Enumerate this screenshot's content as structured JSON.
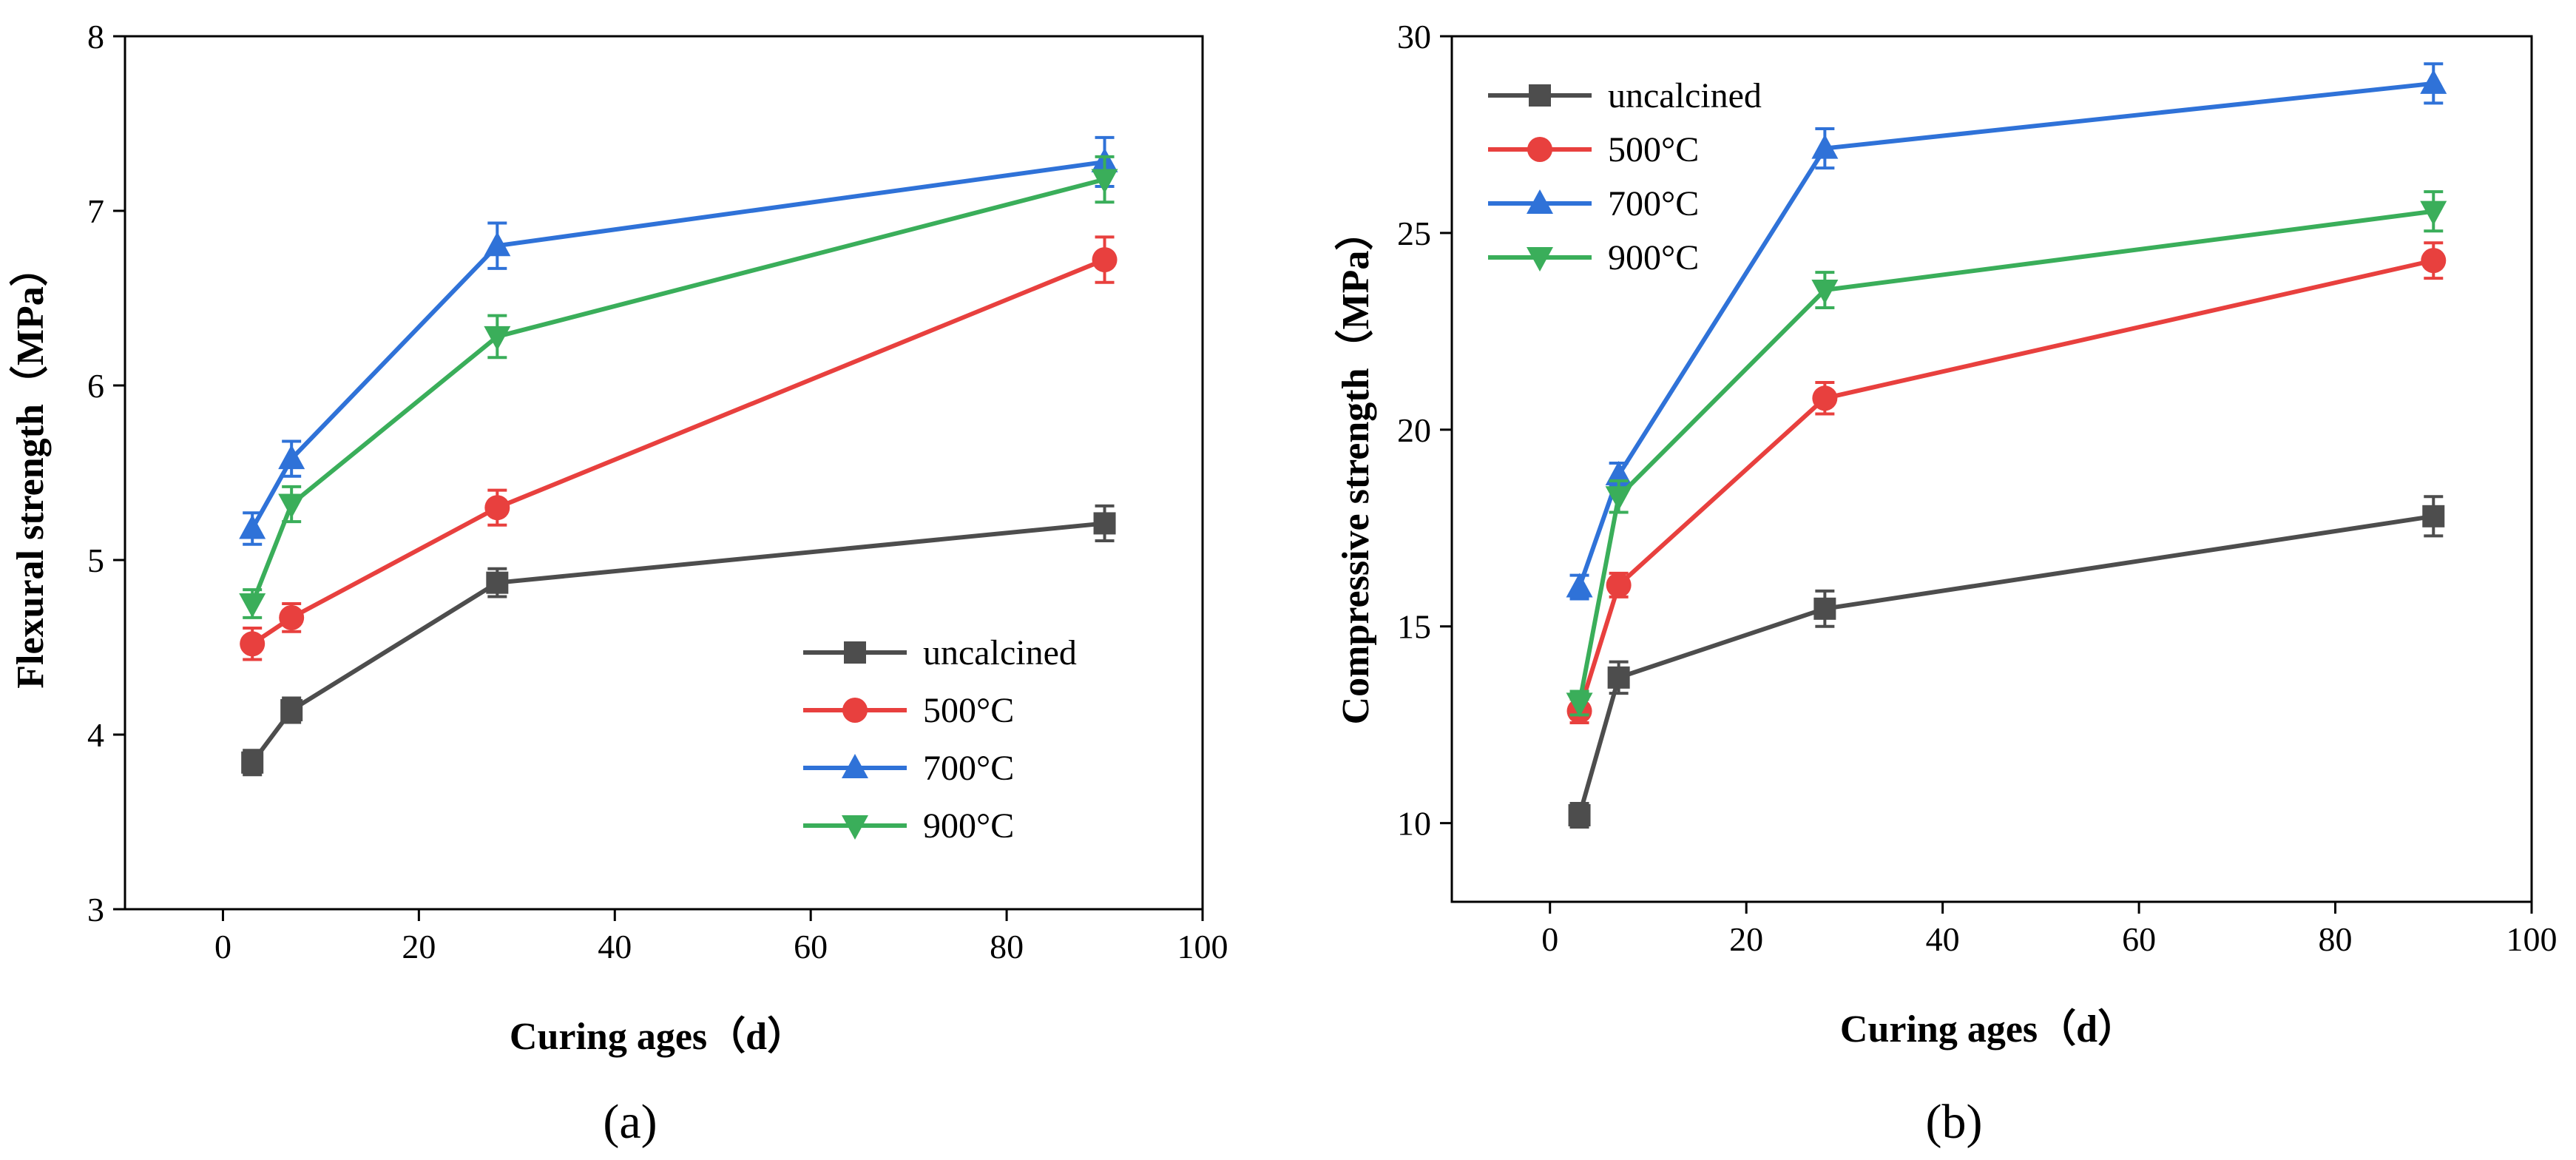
{
  "series_colors": [
    "#4d4d4d",
    "#e8403e",
    "#2f72d8",
    "#3aae5a"
  ],
  "chart_data": [
    {
      "type": "line",
      "id": "a",
      "xlabel": "Curing ages（d）",
      "ylabel": "Flexural strength（MPa）",
      "xlim": [
        -10,
        100
      ],
      "ylim": [
        3,
        8
      ],
      "xticks": [
        0,
        20,
        40,
        60,
        80,
        100
      ],
      "yticks": [
        3,
        4,
        5,
        6,
        7,
        8
      ],
      "xtick_labels": [
        "0",
        "20",
        "40",
        "60",
        "80",
        "100"
      ],
      "ytick_labels": [
        "3",
        "4",
        "5",
        "6",
        "7",
        "8"
      ],
      "legend_position": "bottom-right",
      "caption": "(a)",
      "x": [
        3,
        7,
        28,
        90
      ],
      "series": [
        {
          "name": "uncalcined",
          "marker": "square",
          "values": [
            3.84,
            4.14,
            4.87,
            5.21
          ],
          "errors": [
            0.07,
            0.07,
            0.08,
            0.1
          ]
        },
        {
          "name": "500°C",
          "marker": "circle",
          "values": [
            4.52,
            4.67,
            5.3,
            6.72
          ],
          "errors": [
            0.09,
            0.08,
            0.1,
            0.13
          ]
        },
        {
          "name": "700°C",
          "marker": "triangle-up",
          "values": [
            5.18,
            5.58,
            6.8,
            7.28
          ],
          "errors": [
            0.09,
            0.1,
            0.13,
            0.14
          ]
        },
        {
          "name": "900°C",
          "marker": "triangle-down",
          "values": [
            4.75,
            5.32,
            6.28,
            7.18
          ],
          "errors": [
            0.08,
            0.1,
            0.12,
            0.13
          ]
        }
      ]
    },
    {
      "type": "line",
      "id": "b",
      "xlabel": "Curing ages（d）",
      "ylabel": "Compressive strength（MPa）",
      "xlim": [
        -10,
        100
      ],
      "ylim": [
        8,
        30
      ],
      "xticks": [
        0,
        20,
        40,
        60,
        80,
        100
      ],
      "yticks": [
        10,
        15,
        20,
        25,
        30
      ],
      "xtick_labels": [
        "0",
        "20",
        "40",
        "60",
        "80",
        "100"
      ],
      "ytick_labels": [
        "10",
        "15",
        "20",
        "25",
        "30"
      ],
      "legend_position": "top-left",
      "caption": "(b)",
      "x": [
        3,
        7,
        28,
        90
      ],
      "series": [
        {
          "name": "uncalcined",
          "marker": "square",
          "values": [
            10.2,
            13.7,
            15.45,
            17.8
          ],
          "errors": [
            0.3,
            0.4,
            0.45,
            0.5
          ]
        },
        {
          "name": "500°C",
          "marker": "circle",
          "values": [
            12.85,
            16.05,
            20.8,
            24.3
          ],
          "errors": [
            0.3,
            0.3,
            0.4,
            0.45
          ]
        },
        {
          "name": "700°C",
          "marker": "triangle-up",
          "values": [
            16.0,
            18.85,
            27.15,
            28.8
          ],
          "errors": [
            0.3,
            0.3,
            0.5,
            0.5
          ]
        },
        {
          "name": "900°C",
          "marker": "triangle-down",
          "values": [
            13.05,
            18.3,
            23.55,
            25.55
          ],
          "errors": [
            0.3,
            0.4,
            0.45,
            0.5
          ]
        }
      ]
    }
  ]
}
